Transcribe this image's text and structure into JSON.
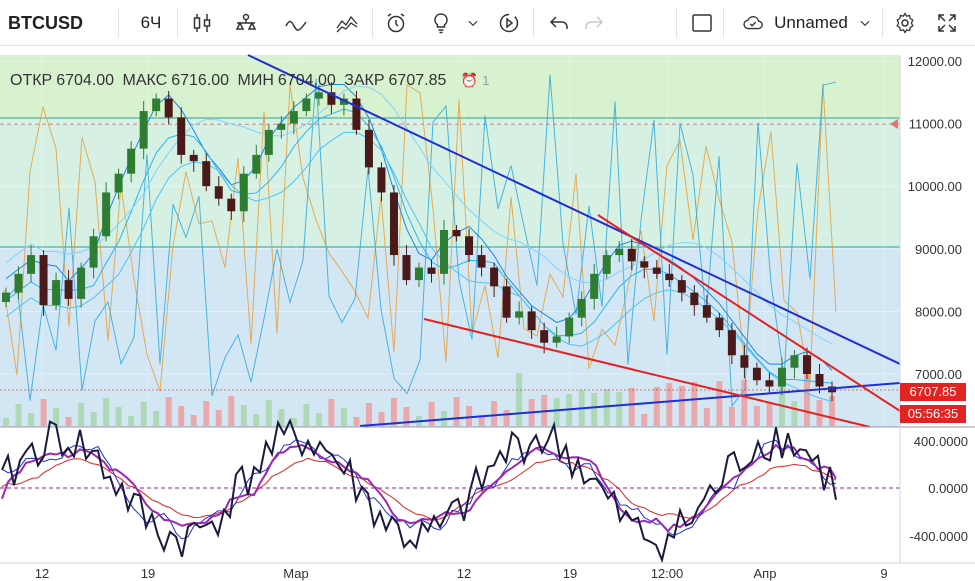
{
  "toolbar": {
    "symbol": "BTCUSD",
    "interval": "6Ч",
    "layout_name": "Unnamed",
    "icons": [
      "candles-icon",
      "indicators-icon",
      "drawing-line-icon",
      "compare-icon",
      "alert-icon",
      "idea-icon",
      "chevron-down-icon",
      "replay-icon",
      "undo-icon",
      "redo-icon",
      "layout-square-icon",
      "cloud-icon",
      "chevron-down-icon",
      "settings-icon",
      "fullscreen-icon"
    ]
  },
  "legend": {
    "open_label": "ОТКР",
    "open_value": "6704.00",
    "high_label": "МАКС",
    "high_value": "6716.00",
    "low_label": "МИН",
    "low_value": "6704.00",
    "close_label": "ЗАКР",
    "close_value": "6707.85",
    "alerts_count": "1"
  },
  "price_axis": {
    "ticks": [
      "12000.00",
      "11000.00",
      "10000.00",
      "9000.00",
      "8000.00",
      "7000.00"
    ],
    "current_price": "6707.85",
    "countdown": "05:56:35"
  },
  "osc_axis": {
    "ticks": [
      "400.0000",
      "0.0000",
      "-400.0000"
    ]
  },
  "time_axis": {
    "ticks": [
      "12",
      "19",
      "Мар",
      "12",
      "19",
      "12:00",
      "Апр",
      "9"
    ]
  },
  "colors": {
    "up": "#2e7d32",
    "down": "#4a1a1a",
    "trend_blue": "#1f2fd6",
    "trend_red": "#e32322",
    "band_green": "#d7f2cf",
    "band_blue": "#d3e8f5"
  },
  "chart_data": {
    "type": "candlestick",
    "title": "",
    "ylim": [
      6000,
      12300
    ],
    "close_series_approx": [
      8300,
      8600,
      8900,
      8100,
      8500,
      8200,
      8700,
      9200,
      9900,
      10200,
      10600,
      11200,
      11400,
      11100,
      10500,
      10400,
      10000,
      9800,
      9600,
      10200,
      10500,
      10900,
      11000,
      11200,
      11400,
      11500,
      11300,
      11400,
      10900,
      10300,
      9900,
      8900,
      8500,
      8700,
      8600,
      9300,
      9200,
      8900,
      8700,
      8400,
      7900,
      8000,
      7700,
      7500,
      7600,
      7900,
      8200,
      8600,
      8900,
      9000,
      8800,
      8700,
      8600,
      8500,
      8300,
      8100,
      7900,
      7700,
      7300,
      7100,
      6900,
      6800,
      7100,
      7300,
      7000,
      6800,
      6707.85
    ],
    "oscillator_ylim": [
      -450,
      450
    ]
  }
}
